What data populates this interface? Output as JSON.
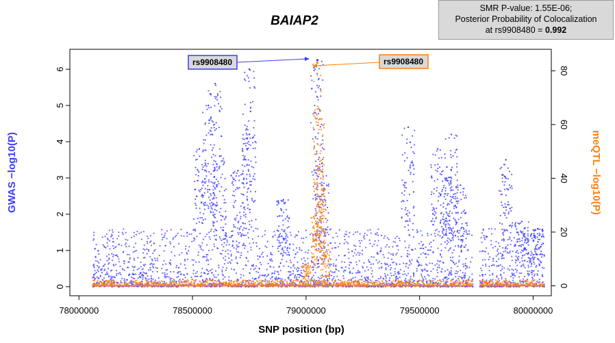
{
  "chart_data": {
    "type": "scatter",
    "title": "BAIAP2",
    "xlabel": "SNP position (bp)",
    "ylabel_left": "GWAS −log10(P)",
    "ylabel_right": "meQTL −log10(P)",
    "x_ticks": [
      "78000000",
      "78500000",
      "79000000",
      "79500000",
      "80000000"
    ],
    "x_tick_values": [
      78000000,
      78500000,
      79000000,
      79500000,
      80000000
    ],
    "y_left_ticks": [
      "0",
      "1",
      "2",
      "3",
      "4",
      "5",
      "6"
    ],
    "y_right_ticks": [
      "0",
      "20",
      "40",
      "60",
      "80"
    ],
    "xlim": [
      77960000,
      80080000
    ],
    "ylim_left": [
      -0.25,
      6.55
    ],
    "ylim_right": [
      -3.7,
      88
    ],
    "legend": "none",
    "grid": false,
    "series": [
      {
        "name": "GWAS",
        "color": "#3a3aff",
        "axis": "left",
        "peaks": [
          {
            "x": 78600000,
            "y": 5.6
          },
          {
            "x": 78570000,
            "y": 5.0
          },
          {
            "x": 78750000,
            "y": 4.2
          },
          {
            "x": 78750000,
            "y": 6.0
          },
          {
            "x": 78530000,
            "y": 3.8
          },
          {
            "x": 78620000,
            "y": 3.6
          },
          {
            "x": 78700000,
            "y": 3.2
          },
          {
            "x": 78900000,
            "y": 2.4
          },
          {
            "x": 79050000,
            "y": 6.25
          },
          {
            "x": 79070000,
            "y": 3.4
          },
          {
            "x": 79450000,
            "y": 4.4
          },
          {
            "x": 79580000,
            "y": 3.8
          },
          {
            "x": 79620000,
            "y": 3.3
          },
          {
            "x": 79640000,
            "y": 4.2
          },
          {
            "x": 79680000,
            "y": 2.8
          },
          {
            "x": 79880000,
            "y": 3.5
          },
          {
            "x": 79950000,
            "y": 1.8
          },
          {
            "x": 80020000,
            "y": 1.6
          }
        ]
      },
      {
        "name": "meQTL",
        "color": "#ff7f0e",
        "axis": "right",
        "peaks": [
          {
            "x": 79050000,
            "y": 83
          },
          {
            "x": 79055000,
            "y": 66
          },
          {
            "x": 79060000,
            "y": 62
          },
          {
            "x": 79065000,
            "y": 40
          },
          {
            "x": 79040000,
            "y": 26
          },
          {
            "x": 79070000,
            "y": 36
          },
          {
            "x": 79085000,
            "y": 16
          },
          {
            "x": 79000000,
            "y": 8
          }
        ]
      }
    ],
    "top_snp": {
      "x": 79050000,
      "gwas_y": 6.25,
      "meqtl_y": 83
    }
  },
  "annotations": {
    "left_label": "rs9908480",
    "right_label": "rs9908480",
    "left_color": "#3a3aff",
    "right_color": "#ff7f0e"
  },
  "info_box": {
    "line1": "SMR P-value: 1.55E-06;",
    "line2": "Posterior Probability of Colocalization",
    "line3_prefix": "at rs9908480 = ",
    "line3_value": "0.992"
  }
}
